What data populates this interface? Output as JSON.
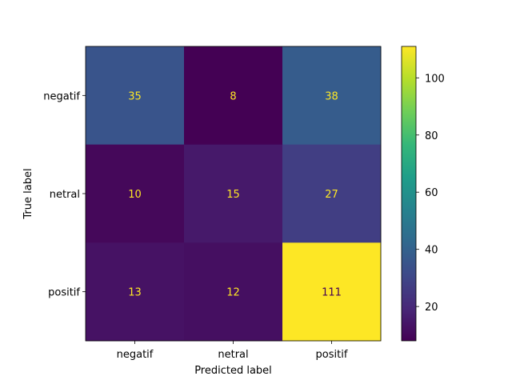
{
  "chart_data": {
    "type": "heatmap",
    "title": "",
    "xlabel": "Predicted label",
    "ylabel": "True label",
    "x_categories": [
      "negatif",
      "netral",
      "positif"
    ],
    "y_categories": [
      "negatif",
      "netral",
      "positif"
    ],
    "values": [
      [
        35,
        8,
        38
      ],
      [
        10,
        15,
        27
      ],
      [
        13,
        12,
        111
      ]
    ],
    "colormap": "viridis",
    "colorbar": {
      "range": [
        8,
        111
      ],
      "ticks": [
        20,
        40,
        60,
        80,
        100
      ]
    },
    "text_color_light": "#fde725",
    "text_color_dark": "#440154",
    "grid": false
  }
}
